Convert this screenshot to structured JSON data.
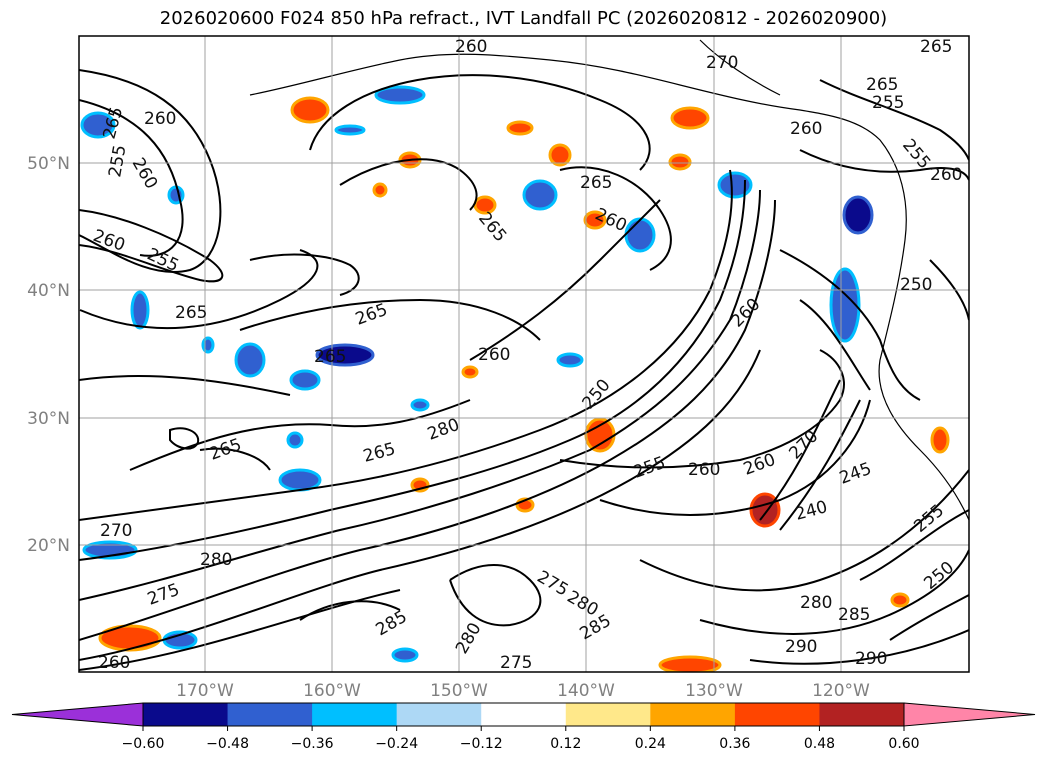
{
  "title": "2026020600 F024 850 hPa refract., IVT Landfall PC (2026020812 - 2026020900)",
  "lat_labels": [
    "50°N",
    "40°N",
    "30°N",
    "20°N"
  ],
  "lon_labels": [
    "170°W",
    "160°W",
    "150°W",
    "140°W",
    "130°W",
    "120°W"
  ],
  "contour_labels": [
    "260",
    "265",
    "270",
    "265",
    "255",
    "260",
    "265",
    "260",
    "255",
    "260",
    "265",
    "260",
    "255",
    "260",
    "255",
    "260",
    "250",
    "265",
    "260",
    "265",
    "265",
    "260",
    "265",
    "250",
    "280",
    "255",
    "260",
    "265",
    "265",
    "260",
    "270",
    "245",
    "240",
    "255",
    "250",
    "280",
    "285",
    "290",
    "290",
    "270",
    "280",
    "275",
    "285",
    "280",
    "285",
    "275",
    "280",
    "260",
    "275"
  ],
  "colorbar": {
    "ticks": [
      "−0.60",
      "−0.48",
      "−0.36",
      "−0.24",
      "−0.12",
      "0.12",
      "0.24",
      "0.36",
      "0.48",
      "0.60"
    ],
    "colors": [
      "#9b30d9",
      "#0a0a8c",
      "#3060d0",
      "#00bfff",
      "#add8f5",
      "#ffffff",
      "#ffe88a",
      "#ffa500",
      "#ff4500",
      "#b22222",
      "#ff85a8"
    ]
  }
}
